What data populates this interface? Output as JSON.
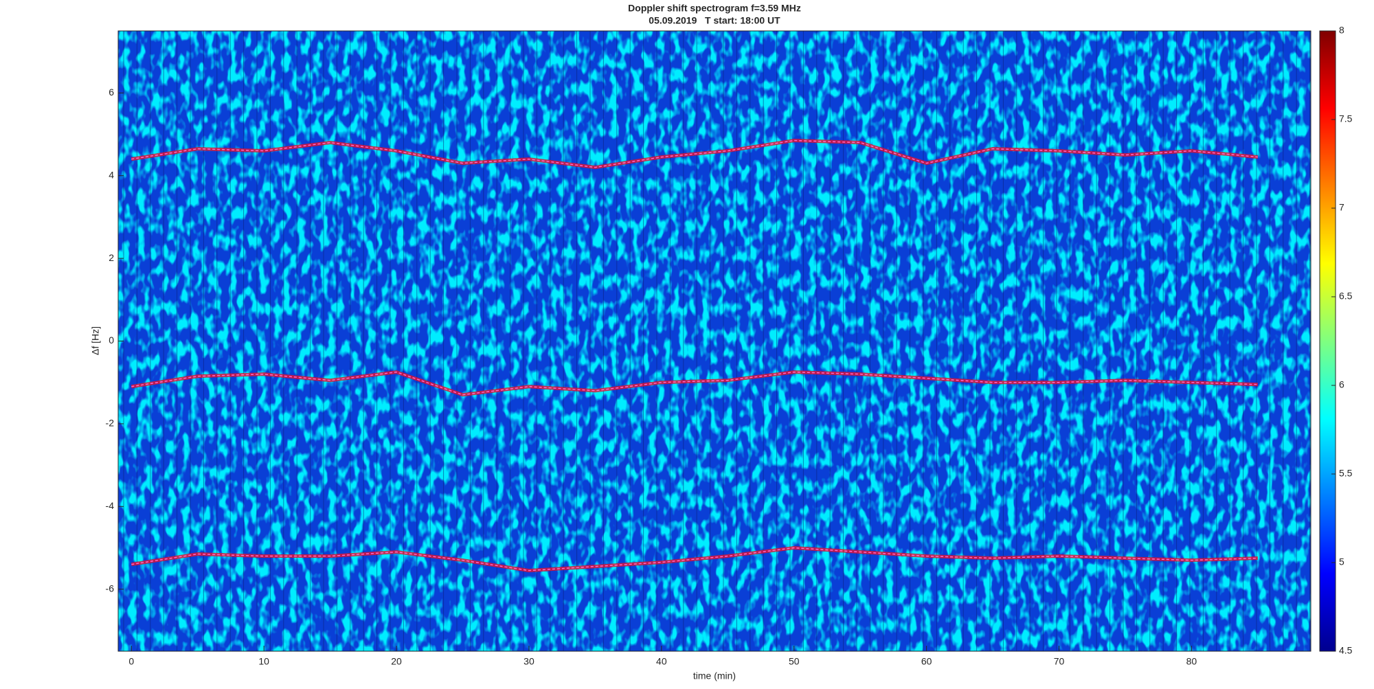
{
  "chart_data": {
    "type": "spectrogram",
    "title": "Doppler shift spectrogram f=3.59 MHz",
    "subtitle": "05.09.2019   T start: 18:00 UT",
    "x_label": "time (min)",
    "y_label": "Δf [Hz]",
    "xlim": [
      -1,
      89
    ],
    "xticks": [
      0,
      10,
      20,
      30,
      40,
      50,
      60,
      70,
      80
    ],
    "ylim": [
      -7.5,
      7.5
    ],
    "yticks": [
      -6,
      -4,
      -2,
      0,
      2,
      4,
      6
    ],
    "colorbar": {
      "lim": [
        4.5,
        8
      ],
      "ticks": [
        4.5,
        5,
        5.5,
        6,
        6.5,
        7,
        7.5,
        8
      ]
    },
    "x": [
      0,
      5,
      10,
      15,
      20,
      25,
      30,
      35,
      40,
      45,
      50,
      55,
      60,
      65,
      70,
      75,
      80,
      85
    ],
    "series": [
      {
        "color": "#e8102a",
        "values": [
          4.4,
          4.65,
          4.6,
          4.8,
          4.6,
          4.3,
          4.4,
          4.2,
          4.45,
          4.6,
          4.85,
          4.8,
          4.3,
          4.65,
          4.6,
          4.5,
          4.6,
          4.45
        ]
      },
      {
        "color": "#e8102a",
        "values": [
          -1.1,
          -0.85,
          -0.8,
          -0.95,
          -0.75,
          -1.3,
          -1.1,
          -1.2,
          -1.0,
          -0.95,
          -0.75,
          -0.8,
          -0.9,
          -1.0,
          -1.0,
          -0.95,
          -1.0,
          -1.05
        ]
      },
      {
        "color": "#e8102a",
        "values": [
          -5.4,
          -5.15,
          -5.2,
          -5.2,
          -5.1,
          -5.3,
          -5.55,
          -5.45,
          -5.35,
          -5.2,
          -5.0,
          -5.1,
          -5.2,
          -5.25,
          -5.2,
          -5.25,
          -5.3,
          -5.25
        ]
      }
    ]
  }
}
